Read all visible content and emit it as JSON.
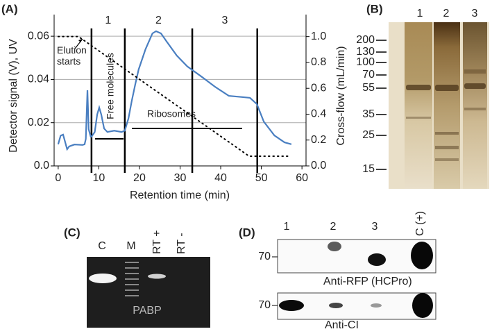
{
  "chart_data": {
    "type": "line",
    "panel_label": "(A)",
    "xlabel": "Retention time (min)",
    "ylabel": "Detector signal (V), UV",
    "y2label": "Cross-flow (mL/min)",
    "xlim": [
      -1,
      61
    ],
    "xticks": [
      0,
      10,
      20,
      30,
      40,
      50,
      60
    ],
    "ylim": [
      0,
      0.07
    ],
    "yticks": [
      {
        "value": 0,
        "label": "0.0"
      },
      0.02,
      0.04,
      0.06
    ],
    "y2lim": [
      0,
      1.17
    ],
    "y2ticks": [
      {
        "value": 0,
        "label": "0.0"
      },
      0.2,
      0.4,
      0.6,
      0.8,
      {
        "value": 1,
        "label": "1.0"
      }
    ],
    "grid": true,
    "boundaries": [
      8.2,
      16.4,
      33,
      49
    ],
    "fraction_labels": [
      "1",
      "2",
      "3"
    ],
    "annotations": [
      "Elution starts",
      "Free molecules",
      "Ribosomes"
    ],
    "series": [
      {
        "color": "#4a7fc1",
        "linestyle": "solid",
        "x": [
          0,
          0.6,
          1.2,
          1.5,
          2.2,
          2.7,
          4,
          6,
          6.5,
          6.8,
          7.2,
          7.5,
          8,
          8.2,
          9,
          9.6,
          10.1,
          10.6,
          11.3,
          12.1,
          13.8,
          15.6,
          16.4,
          17.3,
          18.1,
          19,
          19.8,
          21.5,
          23.2,
          24.1,
          25.3,
          26.7,
          29.2,
          31.8,
          35.2,
          38.6,
          42,
          45.5,
          47.2,
          48.9,
          50.6,
          53.2,
          55.7,
          57.4
        ],
        "values": [
          0.01,
          0.014,
          0.0145,
          0.0125,
          0.0077,
          0.009,
          0.0099,
          0.0097,
          0.01,
          0.0125,
          0.035,
          0.017,
          0.0135,
          0.0135,
          0.0157,
          0.0238,
          0.027,
          0.0238,
          0.0173,
          0.0157,
          0.0163,
          0.0157,
          0.0163,
          0.022,
          0.03,
          0.038,
          0.0446,
          0.054,
          0.0613,
          0.0623,
          0.0613,
          0.0575,
          0.051,
          0.046,
          0.0414,
          0.0366,
          0.0324,
          0.0318,
          0.0315,
          0.0286,
          0.0205,
          0.0141,
          0.0109,
          0.01
        ]
      },
      {
        "color": "#000000",
        "linestyle": "dotted",
        "axis": "y2",
        "x": [
          0,
          5,
          47,
          57
        ],
        "values": [
          1.0,
          1.0,
          0.075,
          0.075
        ]
      }
    ]
  },
  "panel_b": {
    "label": "(B)",
    "lanes": [
      "1",
      "2",
      "3"
    ],
    "markers": [
      "200",
      "130",
      "100",
      "70",
      "55",
      "35",
      "25",
      "15"
    ]
  },
  "panel_c": {
    "label": "(C)",
    "lanes": [
      "C",
      "M",
      "RT +",
      "RT -"
    ],
    "target": "PABP"
  },
  "panel_d": {
    "label": "(D)",
    "lanes": [
      "1",
      "2",
      "3",
      "C (+)"
    ],
    "blots": [
      {
        "marker": "70",
        "antibody": "Anti-RFP (HCPro)"
      },
      {
        "marker": "70",
        "antibody": "Anti-CI"
      }
    ]
  }
}
